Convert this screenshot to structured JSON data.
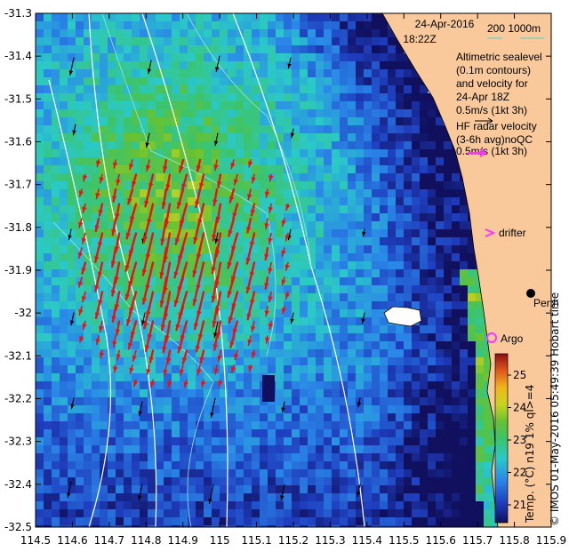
{
  "map": {
    "date": "24-Apr-2016",
    "time": "18:22Z",
    "scale_label": "200   1000m",
    "altimetric_lines": [
      "Altimetric sealevel",
      "(0.1m contours)",
      "and velocity for",
      "24-Apr 18Z",
      "0.5m/s (1kt 3h)"
    ],
    "hf_lines": [
      "HF radar velocity",
      "(3-6h avg)noQC",
      "0.5m/s (1kt 3h)"
    ],
    "drifter_label": "drifter",
    "argo_label": "Argo",
    "city_label": "Perth",
    "credit_label": "© IMOS 01-May-2016 05:49:39 Hobart time",
    "colorbar_label": "Temp. (°C) n19 1% ql>=4",
    "colorbar_ticks": [
      "25",
      "24",
      "23",
      "22",
      "21"
    ],
    "x_ticks": [
      "114.5",
      "114.6",
      "114.7",
      "114.8",
      "114.9",
      "115",
      "115.1",
      "115.2",
      "115.3",
      "115.4",
      "115.5",
      "115.6",
      "115.7",
      "115.8",
      "115.9"
    ],
    "y_ticks": [
      "-31.3",
      "-31.4",
      "-31.5",
      "-31.6",
      "-31.7",
      "-31.8",
      "-31.9",
      "-32",
      "-32.1",
      "-32.2",
      "-32.3",
      "-32.4",
      "-32.5"
    ],
    "colors": {
      "land": "#f9c99b",
      "hf_arrow": "#ee1111",
      "alt_arrow": "#000000",
      "drifter": "#ff33ff",
      "argo": "#ff33ff",
      "scale_line": "#4fd3c8"
    }
  }
}
